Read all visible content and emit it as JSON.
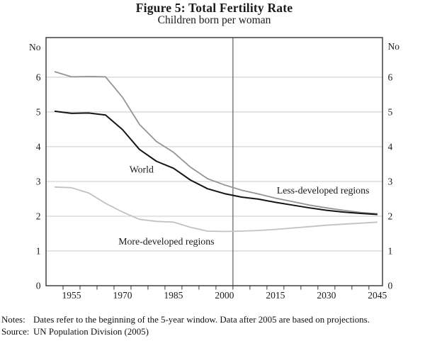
{
  "title": "Figure 5: Total Fertility Rate",
  "subtitle": "Children born per woman",
  "notes": {
    "label": "Notes:",
    "text": "Dates refer to the beginning of the 5-year window. Data after 2005 are based on projections."
  },
  "source": {
    "label": "Source:",
    "text": "UN Population Division (2005)"
  },
  "chart_data": {
    "type": "line",
    "title": "Figure 5: Total Fertility Rate",
    "subtitle": "Children born per woman",
    "ylabel": "No",
    "ylabel_right": "No",
    "xlabel": "",
    "ylim": [
      0,
      7.14
    ],
    "yticks": [
      0,
      1,
      2,
      3,
      4,
      5,
      6
    ],
    "xlim": [
      1947.5,
      2046.5
    ],
    "xtick_labels": [
      1955,
      1970,
      1985,
      2000,
      2015,
      2030,
      2045
    ],
    "xtick_minor_start": 1952.5,
    "xtick_minor_end": 2042.5,
    "xtick_minor_step": 5,
    "grid": "horizontal",
    "legend_position": "inline-labels",
    "projection_divider_year": 2002.5,
    "x": [
      1950,
      1955,
      1960,
      1965,
      1970,
      1975,
      1980,
      1985,
      1990,
      1995,
      2000,
      2005,
      2010,
      2015,
      2020,
      2025,
      2030,
      2035,
      2040,
      2045
    ],
    "series": [
      {
        "name": "World",
        "color": "#141414",
        "width": 2,
        "label_anchor": {
          "year": 1975.6,
          "value": 3.35
        },
        "values": [
          5.02,
          4.96,
          4.97,
          4.91,
          4.49,
          3.92,
          3.58,
          3.38,
          3.04,
          2.79,
          2.65,
          2.55,
          2.49,
          2.4,
          2.32,
          2.24,
          2.17,
          2.12,
          2.08,
          2.05
        ]
      },
      {
        "name": "Less-developed regions",
        "color": "#949494",
        "width": 1.8,
        "label_anchor": {
          "year": 2029.0,
          "value": 2.74
        },
        "values": [
          6.16,
          6.01,
          6.02,
          6.01,
          5.42,
          4.64,
          4.15,
          3.84,
          3.41,
          3.08,
          2.9,
          2.75,
          2.64,
          2.52,
          2.42,
          2.32,
          2.24,
          2.17,
          2.11,
          2.07
        ]
      },
      {
        "name": "More-developed regions",
        "color": "#c2c2c2",
        "width": 1.8,
        "label_anchor": {
          "year": 1982.9,
          "value": 1.27
        },
        "values": [
          2.84,
          2.82,
          2.67,
          2.37,
          2.12,
          1.91,
          1.85,
          1.83,
          1.68,
          1.57,
          1.56,
          1.57,
          1.59,
          1.62,
          1.66,
          1.7,
          1.74,
          1.77,
          1.8,
          1.83
        ]
      }
    ],
    "colors": {
      "grid": "#c9c9c9",
      "frame": "#333333",
      "divider": "#4d4d4d",
      "text": "#1a1a1a"
    }
  }
}
